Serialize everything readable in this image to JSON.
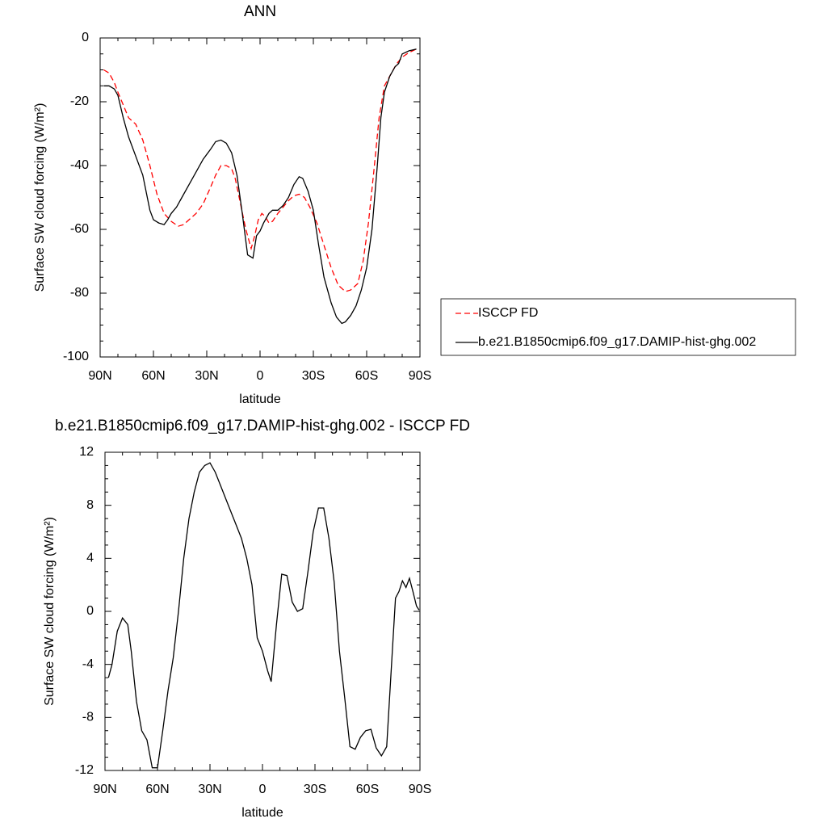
{
  "chart_data": [
    {
      "type": "line",
      "title": "ANN",
      "xlabel": "latitude",
      "ylabel": "Surface SW cloud forcing (W/m²)",
      "xlim": [
        90,
        -90
      ],
      "xticks": [
        {
          "value": 90,
          "label": "90N"
        },
        {
          "value": 60,
          "label": "60N"
        },
        {
          "value": 30,
          "label": "30N"
        },
        0,
        {
          "value": -30,
          "label": "30S"
        },
        {
          "value": -60,
          "label": "60S"
        },
        {
          "value": -90,
          "label": "90S"
        }
      ],
      "ylim": [
        -100,
        0
      ],
      "yticks": [
        0,
        -20,
        -40,
        -60,
        -80,
        -100
      ],
      "series": [
        {
          "name": "ISCCP FD",
          "color": "#ff0000",
          "dash": true,
          "x": [
            88,
            85,
            82,
            80,
            77,
            74,
            70,
            66,
            62,
            58,
            54,
            50,
            46,
            43,
            40,
            36,
            32,
            28,
            25,
            22,
            19,
            16,
            14,
            11,
            8,
            5,
            3,
            1,
            -1,
            -3,
            -5,
            -7,
            -10,
            -13,
            -16,
            -19,
            -22,
            -25,
            -28,
            -32,
            -36,
            -40,
            -44,
            -48,
            -51,
            -55,
            -58,
            -61,
            -64,
            -67,
            -70,
            -74,
            -77,
            -80,
            -84,
            -88
          ],
          "values": [
            -10,
            -11,
            -14,
            -17,
            -21,
            -25,
            -27,
            -32,
            -40,
            -49,
            -55,
            -57.5,
            -59,
            -58.5,
            -57,
            -55,
            -52,
            -47,
            -43,
            -40,
            -40,
            -41,
            -44,
            -52,
            -60,
            -66,
            -62,
            -57,
            -55,
            -56,
            -58,
            -57.5,
            -55,
            -53,
            -51,
            -49.5,
            -49,
            -50,
            -53,
            -58,
            -65,
            -72,
            -77.5,
            -79.5,
            -79,
            -77,
            -70,
            -58,
            -42,
            -25,
            -15,
            -11,
            -8,
            -6,
            -4.5,
            -3.5
          ]
        },
        {
          "name": "b.e21.B1850cmip6.f09_g17.DAMIP-hist-ghg.002",
          "color": "#000000",
          "dash": false,
          "x": [
            88,
            85,
            82,
            80,
            77,
            74,
            70,
            66,
            62,
            60,
            57,
            54,
            52,
            50,
            47,
            44,
            40,
            36,
            32,
            28,
            25,
            22,
            19,
            16,
            13,
            10,
            7,
            4,
            2,
            0,
            -2,
            -5,
            -7,
            -10,
            -13,
            -16,
            -19,
            -22,
            -24,
            -27,
            -30,
            -33,
            -36,
            -40,
            -43,
            -46,
            -48,
            -51,
            -54,
            -57,
            -60,
            -63,
            -66,
            -68,
            -70,
            -73,
            -76,
            -78,
            -80,
            -84,
            -88
          ],
          "values": [
            -15,
            -15,
            -16,
            -18,
            -25,
            -31,
            -37,
            -43,
            -54,
            -57,
            -58,
            -58.5,
            -57,
            -55,
            -53,
            -50,
            -46,
            -42,
            -38,
            -35,
            -32.5,
            -32,
            -33,
            -36,
            -43,
            -55,
            -68,
            -69,
            -62,
            -60.5,
            -58,
            -55,
            -54,
            -54,
            -52.5,
            -50,
            -46,
            -43.5,
            -44,
            -48,
            -54,
            -65,
            -75,
            -83,
            -87.5,
            -89.5,
            -89,
            -87,
            -84,
            -79,
            -72,
            -60,
            -40,
            -25,
            -17,
            -12,
            -9,
            -8,
            -5,
            -4,
            -3.5
          ]
        }
      ]
    },
    {
      "type": "line",
      "title": "b.e21.B1850cmip6.f09_g17.DAMIP-hist-ghg.002 - ISCCP FD",
      "xlabel": "latitude",
      "ylabel": "Surface SW cloud forcing (W/m²)",
      "xlim": [
        90,
        -90
      ],
      "xticks": [
        {
          "value": 90,
          "label": "90N"
        },
        {
          "value": 60,
          "label": "60N"
        },
        {
          "value": 30,
          "label": "30N"
        },
        0,
        {
          "value": -30,
          "label": "30S"
        },
        {
          "value": -60,
          "label": "60S"
        },
        {
          "value": -90,
          "label": "90S"
        }
      ],
      "ylim": [
        -12,
        12
      ],
      "yticks": [
        -12,
        -8,
        -4,
        0,
        4,
        8,
        12
      ],
      "color": "#000000",
      "x": [
        88,
        86,
        83,
        80,
        77,
        75,
        72,
        69,
        66,
        63,
        60,
        57,
        54,
        51,
        48,
        45,
        42,
        39,
        36,
        33,
        30,
        27,
        24,
        21,
        18,
        15,
        12,
        9,
        6,
        3,
        0,
        -3,
        -5,
        -8,
        -11,
        -14,
        -17,
        -20,
        -23,
        -26,
        -29,
        -32,
        -35,
        -38,
        -41,
        -44,
        -47,
        -50,
        -53,
        -56,
        -59,
        -62,
        -65,
        -68,
        -71,
        -74,
        -76,
        -78,
        -80,
        -82,
        -84,
        -86,
        -88,
        -89.5
      ],
      "values": [
        -5,
        -4,
        -1.5,
        -0.5,
        -1,
        -3,
        -6.8,
        -9,
        -9.7,
        -11.8,
        -11.8,
        -9,
        -6,
        -3.5,
        0,
        4,
        7,
        9,
        10.5,
        11,
        11.2,
        10.5,
        9.5,
        8.5,
        7.5,
        6.5,
        5.5,
        4,
        2,
        -2,
        -3,
        -4.5,
        -5.3,
        -1,
        2.8,
        2.7,
        0.7,
        0,
        0.2,
        3,
        6,
        7.8,
        7.8,
        5.5,
        2.2,
        -3,
        -6.5,
        -10.2,
        -10.4,
        -9.5,
        -9,
        -8.9,
        -10.3,
        -10.9,
        -10.2,
        -3.5,
        1,
        1.5,
        2.3,
        1.8,
        2.5,
        1.5,
        0.4,
        0.1
      ]
    }
  ]
}
